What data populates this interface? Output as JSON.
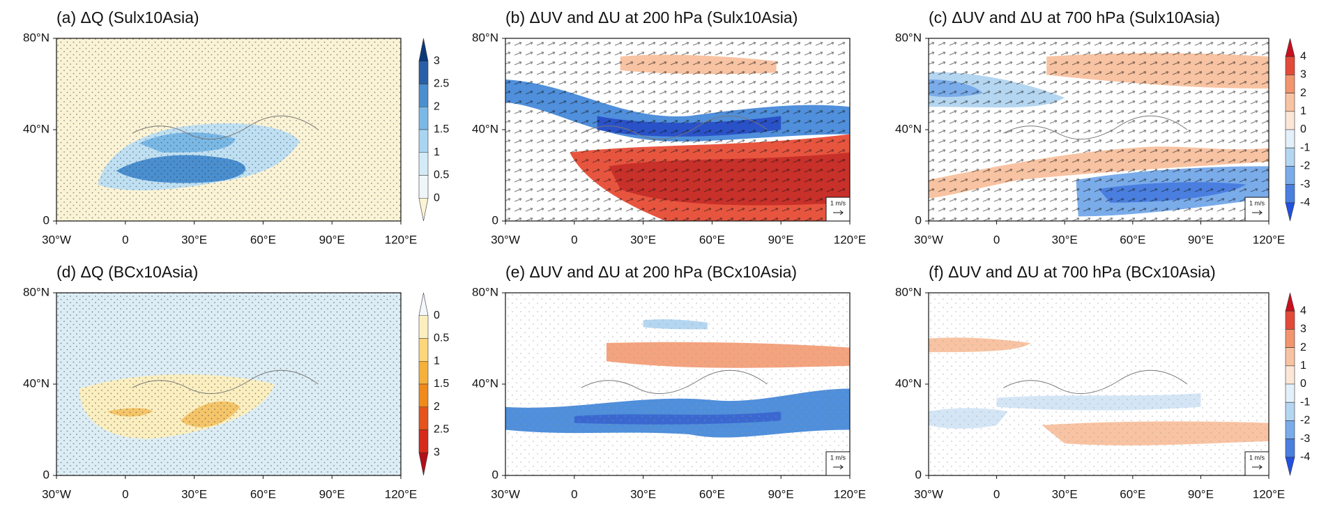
{
  "panels": [
    {
      "title": "(a) ΔQ (Sulx10Asia)",
      "x_labels": [
        "30°W",
        "0",
        "30°E",
        "60°E",
        "90°E",
        "120°E"
      ],
      "y_labels": [
        "0",
        "40°N",
        "80°N"
      ],
      "colorbar": {
        "ticks": [
          3,
          2.5,
          2,
          1.5,
          1,
          0.5,
          0
        ],
        "colors": [
          "#0b3a7a",
          "#2a5fa8",
          "#4a8fd0",
          "#7ab8e6",
          "#a9d5f2",
          "#d4ebf7",
          "#eef6fa",
          "#fbf3d5"
        ]
      }
    },
    {
      "title": "(b) ΔUV and ΔU at 200 hPa (Sulx10Asia)",
      "x_labels": [
        "30°W",
        "0",
        "30°E",
        "60°E",
        "90°E",
        "120°E"
      ],
      "y_labels": [
        "0",
        "40°N",
        "80°N"
      ],
      "vector_scale": "1 m/s"
    },
    {
      "title": "(c) ΔUV and ΔU at 700 hPa (Sulx10Asia)",
      "x_labels": [
        "30°W",
        "0",
        "30°E",
        "60°E",
        "90°E",
        "120°E"
      ],
      "y_labels": [
        "0",
        "40°N",
        "80°N"
      ],
      "vector_scale": "1 m/s",
      "colorbar": {
        "ticks": [
          4,
          3,
          2,
          1,
          0,
          -1,
          -2,
          -3,
          -4
        ],
        "colors": [
          "#c8101e",
          "#e34a3a",
          "#f2956e",
          "#f8c3a2",
          "#fbe6d8",
          "#e3f0f9",
          "#b5d6f0",
          "#7aacea",
          "#4a7fe0",
          "#2250e0"
        ]
      }
    },
    {
      "title": "(d) ΔQ (BCx10Asia)",
      "x_labels": [
        "30°W",
        "0",
        "30°E",
        "60°E",
        "90°E",
        "120°E"
      ],
      "y_labels": [
        "0",
        "40°N",
        "80°N"
      ],
      "colorbar": {
        "ticks": [
          0,
          0.5,
          1,
          1.5,
          2,
          2.5,
          3
        ],
        "colors": [
          "#f4f8fc",
          "#fbefc0",
          "#fbd67a",
          "#f5b13c",
          "#f08a1c",
          "#e5541a",
          "#d62a1a",
          "#b1101a"
        ]
      }
    },
    {
      "title": "(e) ΔUV and ΔU at 200 hPa (BCx10Asia)",
      "x_labels": [
        "30°W",
        "0",
        "30°E",
        "60°E",
        "90°E",
        "120°E"
      ],
      "y_labels": [
        "0",
        "40°N",
        "80°N"
      ],
      "vector_scale": "1 m/s"
    },
    {
      "title": "(f) ΔUV and ΔU at 700 hPa (BCx10Asia)",
      "x_labels": [
        "30°W",
        "0",
        "30°E",
        "60°E",
        "90°E",
        "120°E"
      ],
      "y_labels": [
        "0",
        "40°N",
        "80°N"
      ],
      "vector_scale": "1 m/s",
      "colorbar": {
        "ticks": [
          4,
          3,
          2,
          1,
          0,
          -1,
          -2,
          -3,
          -4
        ],
        "colors": [
          "#c8101e",
          "#e34a3a",
          "#f2956e",
          "#f8c3a2",
          "#fbe6d8",
          "#e3f0f9",
          "#b5d6f0",
          "#7aacea",
          "#4a7fe0",
          "#2250e0"
        ]
      }
    }
  ]
}
